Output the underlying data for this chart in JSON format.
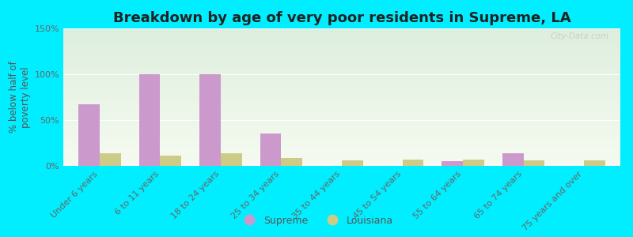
{
  "title": "Breakdown by age of very poor residents in Supreme, LA",
  "ylabel": "% below half of\npoverty level",
  "categories": [
    "Under 6 years",
    "6 to 11 years",
    "18 to 24 years",
    "25 to 34 years",
    "35 to 44 years",
    "45 to 54 years",
    "55 to 64 years",
    "65 to 74 years",
    "75 years and over"
  ],
  "supreme_values": [
    67,
    100,
    100,
    35,
    0,
    0,
    5,
    14,
    0
  ],
  "louisiana_values": [
    14,
    11,
    14,
    9,
    6,
    7,
    7,
    6,
    6
  ],
  "supreme_color": "#cc99cc",
  "louisiana_color": "#cccc88",
  "bg_color": "#00eeff",
  "plot_bg_top": "#ddeedd",
  "plot_bg_bottom": "#f5faf0",
  "ylim": [
    0,
    150
  ],
  "yticks": [
    0,
    50,
    100,
    150
  ],
  "ytick_labels": [
    "0%",
    "50%",
    "100%",
    "150%"
  ],
  "bar_width": 0.35,
  "title_fontsize": 13,
  "axis_label_fontsize": 8.5,
  "tick_fontsize": 8,
  "legend_fontsize": 9,
  "watermark": "City-Data.com"
}
